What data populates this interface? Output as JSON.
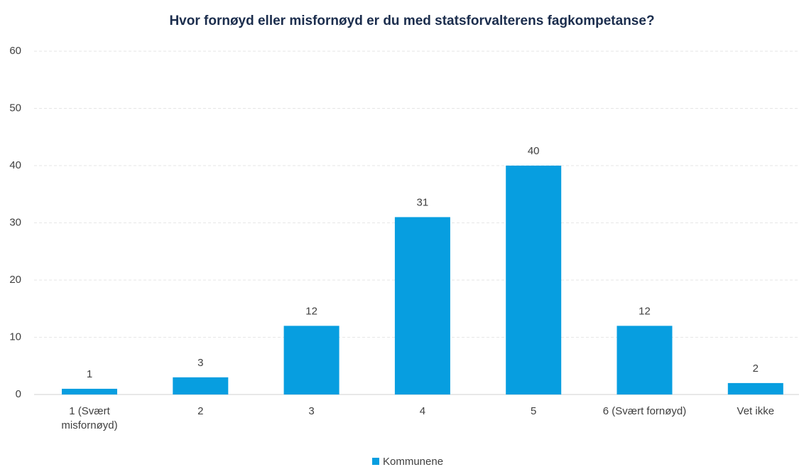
{
  "chart_data": {
    "type": "bar",
    "title": "Hvor fornøyd eller misfornøyd er du med statsforvalterens fagkompetanse?",
    "categories": [
      "1 (Svært misfornøyd)",
      "2",
      "3",
      "4",
      "5",
      "6 (Svært fornøyd)",
      "Vet ikke"
    ],
    "series": [
      {
        "name": "Kommunene",
        "color": "#079ee0",
        "values": [
          1,
          3,
          12,
          31,
          40,
          12,
          2
        ]
      }
    ],
    "ylim": [
      0,
      60
    ],
    "yticks": [
      0,
      10,
      20,
      30,
      40,
      50,
      60
    ],
    "grid": true,
    "legend": "bottom"
  }
}
